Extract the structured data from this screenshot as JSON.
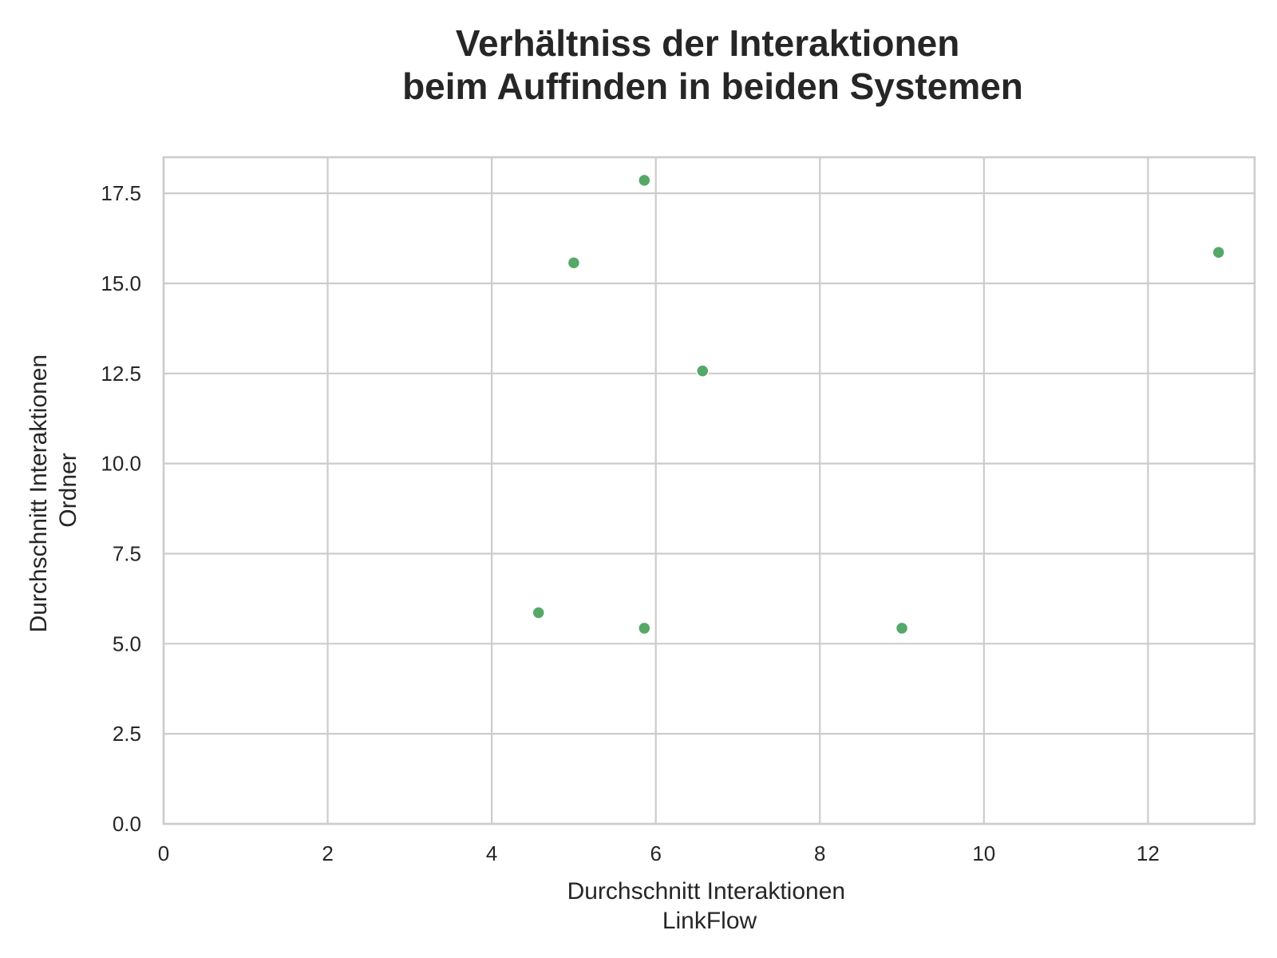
{
  "chart_data": {
    "type": "scatter",
    "title": [
      "Verhältniss der Interaktionen",
      "beim Auffinden in beiden Systemen"
    ],
    "xlabel": [
      "Durchschnitt Interaktionen",
      "LinkFlow"
    ],
    "ylabel": [
      "Durchschnitt Interaktionen",
      "Ordner"
    ],
    "xlim": [
      0,
      13.3
    ],
    "ylim": [
      0,
      18.5
    ],
    "x_ticks": [
      0,
      2,
      4,
      6,
      8,
      10,
      12
    ],
    "x_tick_labels": [
      "0",
      "2",
      "4",
      "6",
      "8",
      "10",
      "12"
    ],
    "y_ticks": [
      0,
      2.5,
      5,
      7.5,
      10,
      12.5,
      15,
      17.5
    ],
    "y_tick_labels": [
      "0.0",
      "2.5",
      "5.0",
      "7.5",
      "10.0",
      "12.5",
      "15.0",
      "17.5"
    ],
    "grid": true,
    "point_color": "#55a868",
    "points": [
      {
        "x": 5.86,
        "y": 17.86
      },
      {
        "x": 5.0,
        "y": 15.57
      },
      {
        "x": 12.86,
        "y": 15.86
      },
      {
        "x": 6.57,
        "y": 12.57
      },
      {
        "x": 4.57,
        "y": 5.86
      },
      {
        "x": 5.86,
        "y": 5.43
      },
      {
        "x": 9.0,
        "y": 5.43
      }
    ]
  }
}
